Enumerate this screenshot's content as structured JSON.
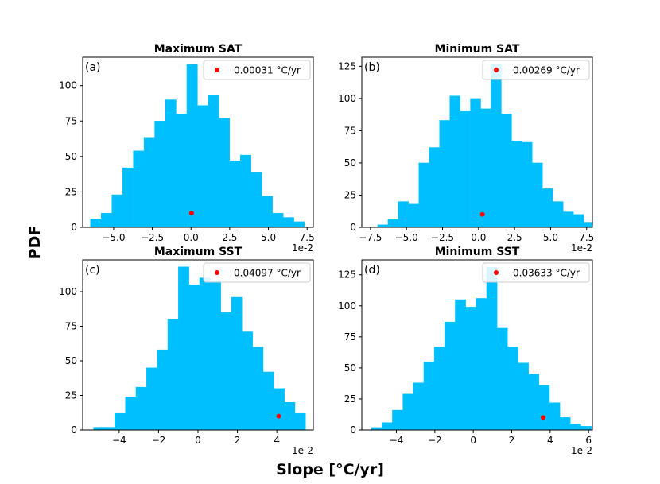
{
  "figure": {
    "ylabel": "PDF",
    "xlabel": "Slope [°C/yr]"
  },
  "colors": {
    "bar": "#00BFFF",
    "marker": "#FF0000",
    "axis": "#000000"
  },
  "chart_data": [
    {
      "type": "bar",
      "panel_label": "(a)",
      "title": "Maximum SAT",
      "legend": "0.00031 °C/yr",
      "legend_position": "top-right",
      "offset_text": "1e-2",
      "xlim": [
        -7.0,
        7.9
      ],
      "ylim": [
        0,
        120
      ],
      "xticks": [
        -5.0,
        -2.5,
        0.0,
        2.5,
        5.0,
        7.5
      ],
      "xtick_labels": [
        "−5.0",
        "−2.5",
        "0.0",
        "2.5",
        "5.0",
        "7.5"
      ],
      "yticks": [
        0,
        25,
        50,
        75,
        100
      ],
      "bin_start": -6.5,
      "bin_width": 0.692,
      "values": [
        6,
        10,
        23,
        42,
        54,
        63,
        75,
        90,
        80,
        115,
        86,
        93,
        77,
        47,
        51,
        39,
        22,
        10,
        7,
        4
      ],
      "marker": {
        "x": 0.031,
        "y": 10
      }
    },
    {
      "type": "bar",
      "panel_label": "(b)",
      "title": "Minimum SAT",
      "legend": "0.00269 °C/yr",
      "legend_position": "top-right",
      "offset_text": "1e-2",
      "xlim": [
        -8.1,
        7.9
      ],
      "ylim": [
        0,
        132
      ],
      "xticks": [
        -7.5,
        -5.0,
        -2.5,
        0.0,
        2.5,
        5.0,
        7.5
      ],
      "xtick_labels": [
        "−7.5",
        "−5.0",
        "−2.5",
        "0.0",
        "2.5",
        "5.0",
        "7.5"
      ],
      "yticks": [
        0,
        25,
        50,
        75,
        100,
        125
      ],
      "bin_start": -7.0,
      "bin_width": 0.715,
      "values": [
        2,
        6,
        20,
        18,
        50,
        62,
        83,
        102,
        90,
        100,
        92,
        127,
        88,
        67,
        66,
        50,
        30,
        20,
        12,
        10,
        4
      ],
      "marker": {
        "x": 0.269,
        "y": 10
      }
    },
    {
      "type": "bar",
      "panel_label": "(c)",
      "title": "Maximum SST",
      "legend": "0.04097 °C/yr",
      "legend_position": "top-right",
      "offset_text": "1e-2",
      "xlim": [
        -5.85,
        5.85
      ],
      "ylim": [
        0,
        123
      ],
      "xticks": [
        -4,
        -2,
        0,
        2,
        4
      ],
      "xtick_labels": [
        "−4",
        "−2",
        "0",
        "2",
        "4"
      ],
      "yticks": [
        0,
        25,
        50,
        75,
        100
      ],
      "bin_start": -5.3,
      "bin_width": 0.538,
      "values": [
        2,
        2,
        12,
        24,
        31,
        45,
        58,
        80,
        118,
        105,
        110,
        108,
        85,
        96,
        71,
        60,
        42,
        30,
        20,
        12
      ],
      "marker": {
        "x": 4.097,
        "y": 10
      }
    },
    {
      "type": "bar",
      "panel_label": "(d)",
      "title": "Minimum SST",
      "legend": "0.03633 °C/yr",
      "legend_position": "top-right",
      "offset_text": "1e-2",
      "xlim": [
        -5.8,
        6.2
      ],
      "ylim": [
        0,
        137
      ],
      "xticks": [
        -4,
        -2,
        0,
        2,
        4,
        6
      ],
      "xtick_labels": [
        "−4",
        "−2",
        "0",
        "2",
        "4",
        "6"
      ],
      "yticks": [
        0,
        25,
        50,
        75,
        100,
        125
      ],
      "bin_start": -5.3,
      "bin_width": 0.545,
      "values": [
        2,
        6,
        16,
        29,
        38,
        55,
        67,
        87,
        105,
        99,
        106,
        131,
        82,
        67,
        54,
        45,
        36,
        22,
        10,
        5,
        3
      ],
      "marker": {
        "x": 3.633,
        "y": 10
      }
    }
  ]
}
